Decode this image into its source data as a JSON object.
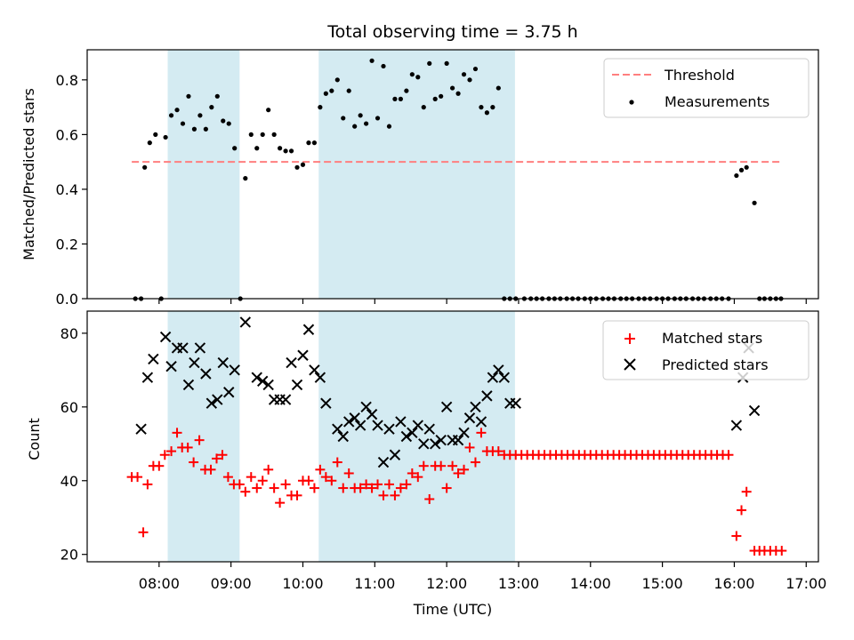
{
  "chart_data": [
    {
      "type": "scatter",
      "title": "Total observing time = 3.75 h",
      "ylabel": "Matched/Predicted stars",
      "xlabel": "",
      "ylim": [
        0,
        0.91
      ],
      "yticks": [
        "0.0",
        "0.2",
        "0.4",
        "0.6",
        "0.8"
      ],
      "ytick_values": [
        0,
        0.2,
        0.4,
        0.6,
        0.8
      ],
      "legend": {
        "location": "upper right",
        "entries": [
          "Threshold",
          "Measurements"
        ]
      },
      "threshold": {
        "name": "Threshold",
        "value": 0.5,
        "x_start": 7.62,
        "x_end": 16.67,
        "color": "#ff7f7f"
      },
      "shaded_spans": [
        [
          8.12,
          9.12
        ],
        [
          10.22,
          12.95
        ]
      ],
      "shade_color": "#add8e6",
      "series": [
        {
          "name": "Measurements",
          "color": "#000000",
          "x": [
            7.67,
            7.75,
            7.8,
            7.87,
            7.95,
            8.03,
            8.09,
            8.17,
            8.25,
            8.33,
            8.41,
            8.49,
            8.57,
            8.65,
            8.73,
            8.81,
            8.89,
            8.97,
            9.05,
            9.13,
            9.2,
            9.28,
            9.36,
            9.44,
            9.52,
            9.6,
            9.68,
            9.76,
            9.84,
            9.92,
            10.0,
            10.08,
            10.16,
            10.24,
            10.32,
            10.4,
            10.48,
            10.56,
            10.64,
            10.72,
            10.8,
            10.88,
            10.96,
            11.04,
            11.12,
            11.2,
            11.28,
            11.36,
            11.44,
            11.52,
            11.6,
            11.68,
            11.76,
            11.84,
            11.92,
            12.0,
            12.08,
            12.16,
            12.24,
            12.32,
            12.4,
            12.48,
            12.56,
            12.64,
            12.72,
            12.8,
            12.88,
            12.96,
            13.08,
            13.17,
            13.25,
            13.33,
            13.42,
            13.5,
            13.58,
            13.67,
            13.75,
            13.83,
            13.92,
            14.0,
            14.08,
            14.17,
            14.25,
            14.33,
            14.42,
            14.5,
            14.58,
            14.67,
            14.75,
            14.83,
            14.92,
            15.0,
            15.08,
            15.17,
            15.25,
            15.33,
            15.42,
            15.5,
            15.58,
            15.67,
            15.75,
            15.83,
            15.92,
            16.03,
            16.1,
            16.17,
            16.28,
            16.35,
            16.42,
            16.5,
            16.58,
            16.65
          ],
          "y": [
            0,
            0,
            0.48,
            0.57,
            0.6,
            0,
            0.59,
            0.67,
            0.69,
            0.64,
            0.74,
            0.62,
            0.67,
            0.62,
            0.7,
            0.74,
            0.65,
            0.64,
            0.55,
            0,
            0.44,
            0.6,
            0.55,
            0.6,
            0.69,
            0.6,
            0.55,
            0.54,
            0.54,
            0.48,
            0.49,
            0.57,
            0.57,
            0.7,
            0.75,
            0.76,
            0.8,
            0.66,
            0.76,
            0.63,
            0.67,
            0.64,
            0.87,
            0.66,
            0.85,
            0.63,
            0.73,
            0.73,
            0.76,
            0.82,
            0.81,
            0.7,
            0.86,
            0.73,
            0.74,
            0.86,
            0.77,
            0.75,
            0.82,
            0.8,
            0.84,
            0.7,
            0.68,
            0.7,
            0.77,
            0,
            0,
            0,
            0,
            0,
            0,
            0,
            0,
            0,
            0,
            0,
            0,
            0,
            0,
            0,
            0,
            0,
            0,
            0,
            0,
            0,
            0,
            0,
            0,
            0,
            0,
            0,
            0,
            0,
            0,
            0,
            0,
            0,
            0,
            0,
            0,
            0,
            0,
            0.45,
            0.47,
            0.48,
            0.35,
            0,
            0,
            0,
            0,
            0
          ]
        }
      ]
    },
    {
      "type": "scatter",
      "title": "",
      "ylabel": "Count",
      "xlabel": "Time (UTC)",
      "xlim": [
        7.0,
        17.17
      ],
      "xticks": [
        "08:00",
        "09:00",
        "10:00",
        "11:00",
        "12:00",
        "13:00",
        "14:00",
        "15:00",
        "16:00",
        "17:00"
      ],
      "xtick_values": [
        8,
        9,
        10,
        11,
        12,
        13,
        14,
        15,
        16,
        17
      ],
      "ylim": [
        18,
        86
      ],
      "yticks": [
        "20",
        "40",
        "60",
        "80"
      ],
      "ytick_values": [
        20,
        40,
        60,
        80
      ],
      "legend": {
        "location": "upper right",
        "entries": [
          "Matched stars",
          "Predicted stars"
        ]
      },
      "shaded_spans": [
        [
          8.12,
          9.12
        ],
        [
          10.22,
          12.95
        ]
      ],
      "shade_color": "#add8e6",
      "series": [
        {
          "name": "Matched stars",
          "marker": "+",
          "color": "#ff0000",
          "x": [
            7.62,
            7.7,
            7.78,
            7.84,
            7.92,
            8.0,
            8.08,
            8.17,
            8.25,
            8.32,
            8.4,
            8.48,
            8.56,
            8.64,
            8.72,
            8.8,
            8.88,
            8.96,
            9.04,
            9.12,
            9.2,
            9.28,
            9.36,
            9.44,
            9.52,
            9.6,
            9.68,
            9.76,
            9.84,
            9.92,
            10.0,
            10.08,
            10.16,
            10.24,
            10.32,
            10.4,
            10.48,
            10.56,
            10.64,
            10.72,
            10.8,
            10.88,
            10.96,
            11.04,
            11.12,
            11.2,
            11.28,
            11.36,
            11.44,
            11.52,
            11.6,
            11.68,
            11.76,
            11.84,
            11.92,
            12.0,
            12.08,
            12.16,
            12.24,
            12.32,
            12.4,
            12.48,
            12.56,
            12.64,
            12.72,
            12.8,
            12.88,
            12.96,
            13.04,
            13.12,
            13.2,
            13.28,
            13.36,
            13.44,
            13.52,
            13.6,
            13.68,
            13.76,
            13.84,
            13.92,
            14.0,
            14.08,
            14.16,
            14.24,
            14.32,
            14.4,
            14.48,
            14.56,
            14.64,
            14.72,
            14.8,
            14.88,
            14.96,
            15.04,
            15.12,
            15.2,
            15.28,
            15.36,
            15.44,
            15.52,
            15.6,
            15.68,
            15.76,
            15.84,
            15.92,
            16.03,
            16.1,
            16.17,
            16.28,
            16.35,
            16.42,
            16.5,
            16.58,
            16.66
          ],
          "y": [
            41,
            41,
            26,
            39,
            44,
            44,
            47,
            48,
            53,
            49,
            49,
            45,
            51,
            43,
            43,
            46,
            47,
            41,
            39,
            39,
            37,
            41,
            38,
            40,
            43,
            38,
            34,
            39,
            36,
            36,
            40,
            40,
            38,
            43,
            41,
            40,
            45,
            38,
            42,
            38,
            38,
            39,
            38,
            39,
            36,
            39,
            36,
            38,
            39,
            42,
            41,
            44,
            35,
            44,
            44,
            38,
            44,
            42,
            43,
            49,
            45,
            53,
            48,
            48,
            48,
            47,
            47,
            47,
            47,
            47,
            47,
            47,
            47,
            47,
            47,
            47,
            47,
            47,
            47,
            47,
            47,
            47,
            47,
            47,
            47,
            47,
            47,
            47,
            47,
            47,
            47,
            47,
            47,
            47,
            47,
            47,
            47,
            47,
            47,
            47,
            47,
            47,
            47,
            47,
            47,
            25,
            32,
            37,
            21,
            21,
            21,
            21,
            21,
            21
          ]
        },
        {
          "name": "Predicted stars",
          "marker": "x",
          "color": "#000000",
          "x": [
            7.75,
            7.84,
            7.92,
            8.09,
            8.17,
            8.25,
            8.33,
            8.41,
            8.49,
            8.57,
            8.65,
            8.73,
            8.81,
            8.89,
            8.97,
            9.05,
            9.2,
            9.36,
            9.44,
            9.52,
            9.6,
            9.68,
            9.76,
            9.84,
            9.92,
            10.0,
            10.08,
            10.16,
            10.24,
            10.32,
            10.48,
            10.56,
            10.64,
            10.72,
            10.8,
            10.88,
            10.96,
            11.04,
            11.12,
            11.2,
            11.28,
            11.36,
            11.44,
            11.52,
            11.6,
            11.68,
            11.76,
            11.84,
            11.92,
            12.0,
            12.08,
            12.16,
            12.24,
            12.32,
            12.4,
            12.48,
            12.56,
            12.64,
            12.72,
            12.8,
            12.88,
            12.96,
            16.03,
            16.12,
            16.2,
            16.28
          ],
          "y": [
            54,
            68,
            73,
            79,
            71,
            76,
            76,
            66,
            72,
            76,
            69,
            61,
            62,
            72,
            64,
            70,
            83,
            68,
            67,
            66,
            62,
            62,
            62,
            72,
            66,
            74,
            81,
            70,
            68,
            61,
            54,
            52,
            56,
            57,
            55,
            60,
            58,
            55,
            45,
            54,
            47,
            56,
            52,
            53,
            55,
            50,
            54,
            50,
            51,
            60,
            51,
            51,
            53,
            57,
            60,
            56,
            63,
            68,
            70,
            68,
            61,
            61,
            55,
            68,
            76,
            59
          ]
        }
      ]
    }
  ]
}
